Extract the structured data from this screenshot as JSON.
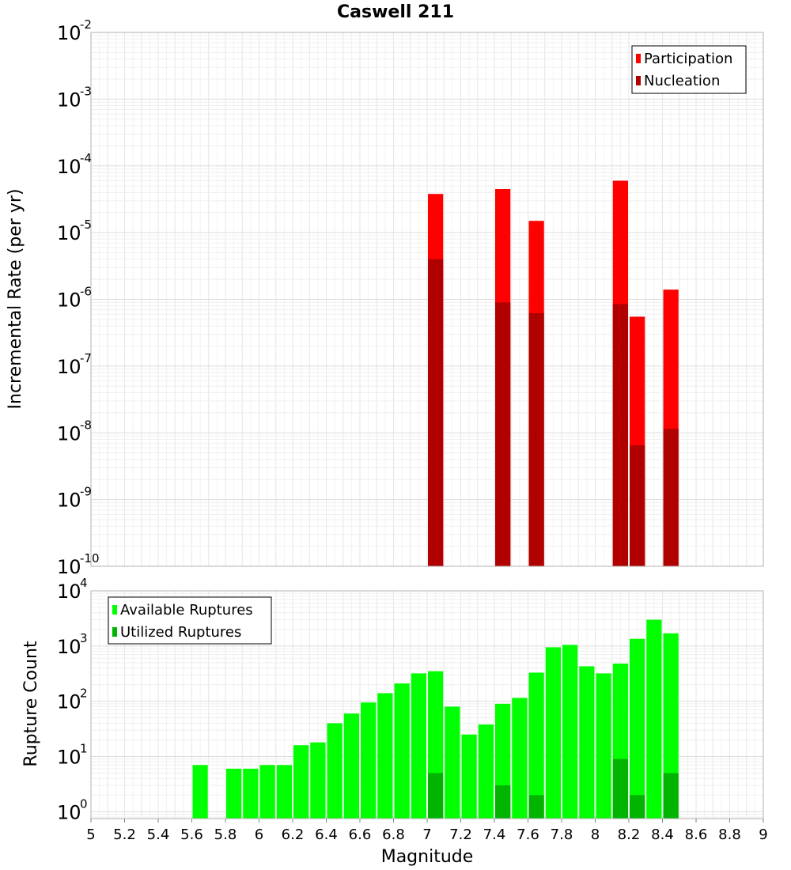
{
  "chart_data": {
    "title": "Caswell 211",
    "xlabel": "Magnitude",
    "xlim": [
      5,
      9
    ],
    "x_ticks": [
      "5",
      "5.2",
      "5.4",
      "5.6",
      "5.8",
      "6",
      "6.2",
      "6.4",
      "6.6",
      "6.8",
      "7",
      "7.2",
      "7.4",
      "7.6",
      "7.8",
      "8",
      "8.2",
      "8.4",
      "8.6",
      "8.8",
      "9"
    ],
    "bin_width": 0.1,
    "panels": [
      {
        "type": "bar",
        "ylabel": "Incremental Rate (per yr)",
        "yscale": "log",
        "ylim": [
          1e-10,
          0.01
        ],
        "y_tick_exponents": [
          "-10",
          "-9",
          "-8",
          "-7",
          "-6",
          "-5",
          "-4",
          "-3",
          "-2"
        ],
        "legend": {
          "location": "top-right",
          "entries": [
            "Participation",
            "Nucleation"
          ]
        },
        "grid": true,
        "series": [
          {
            "name": "Participation",
            "color": "#ff0000",
            "x": [
              7.05,
              7.45,
              7.65,
              8.15,
              8.25,
              8.45
            ],
            "values": [
              3.8e-05,
              4.5e-05,
              1.5e-05,
              6e-05,
              5.5e-07,
              1.4e-06
            ]
          },
          {
            "name": "Nucleation",
            "color": "#b00000",
            "x": [
              7.05,
              7.45,
              7.65,
              8.15,
              8.25,
              8.45
            ],
            "values": [
              4e-06,
              9e-07,
              6.2e-07,
              8.5e-07,
              6.5e-09,
              1.15e-08
            ]
          }
        ]
      },
      {
        "type": "bar",
        "ylabel": "Rupture Count",
        "yscale": "log",
        "ylim": [
          0.75,
          10000
        ],
        "y_tick_exponents": [
          "0",
          "1",
          "2",
          "3",
          "4"
        ],
        "legend": {
          "location": "top-left",
          "entries": [
            "Available Ruptures",
            "Utilized Ruptures"
          ]
        },
        "grid": true,
        "series": [
          {
            "name": "Available Ruptures",
            "color": "#00ff00",
            "x": [
              5.65,
              5.85,
              5.95,
              6.05,
              6.15,
              6.25,
              6.35,
              6.45,
              6.55,
              6.65,
              6.75,
              6.85,
              6.95,
              7.05,
              7.15,
              7.25,
              7.35,
              7.45,
              7.55,
              7.65,
              7.75,
              7.85,
              7.95,
              8.05,
              8.15,
              8.25,
              8.35,
              8.45
            ],
            "values": [
              7,
              6,
              6,
              7,
              7,
              16,
              18,
              40,
              60,
              95,
              140,
              210,
              320,
              350,
              80,
              25,
              38,
              90,
              115,
              330,
              950,
              1050,
              430,
              320,
              480,
              1350,
              3000,
              1700
            ]
          },
          {
            "name": "Utilized Ruptures",
            "color": "#00b400",
            "x": [
              7.05,
              7.45,
              7.65,
              8.15,
              8.25,
              8.45
            ],
            "values": [
              5,
              3,
              2,
              9,
              2,
              5
            ]
          }
        ]
      }
    ]
  }
}
